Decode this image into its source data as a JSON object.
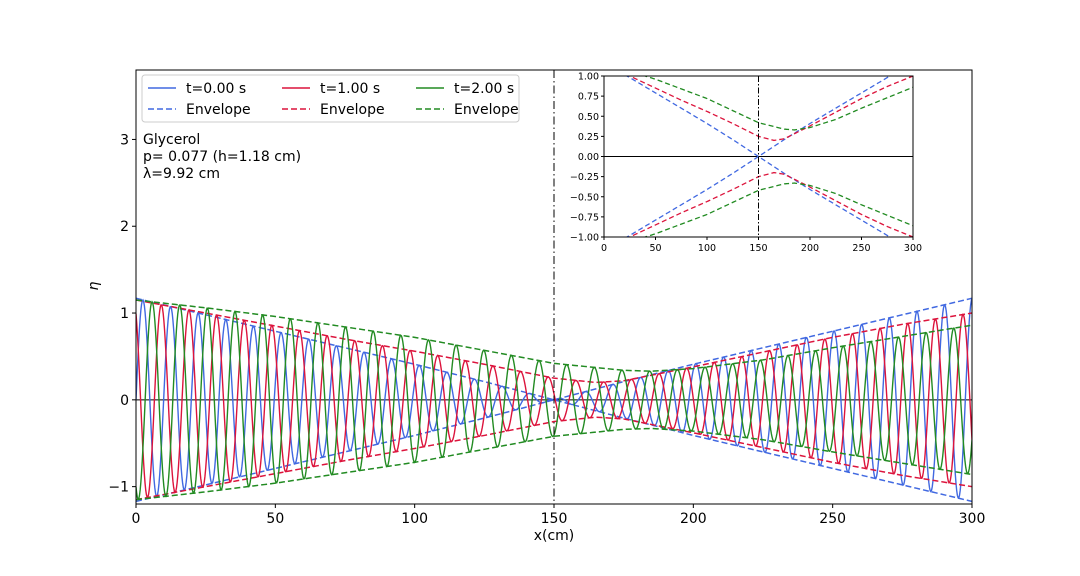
{
  "chart_data": {
    "type": "line",
    "xlabel": "x(cm)",
    "ylabel": "η",
    "xlim": [
      0,
      300
    ],
    "ylim": [
      -1.2,
      3.8
    ],
    "xticks": [
      "0",
      "50",
      "100",
      "150",
      "200",
      "250",
      "300"
    ],
    "yticks": [
      "−1",
      "0",
      "1",
      "2",
      "3"
    ],
    "focus_x": 150,
    "wavelength_cm": 9.92,
    "annotations": [
      "Glycerol",
      "p= 0.077 (h=1.18 cm)",
      "λ=9.92 cm"
    ],
    "legend_position": "top-left",
    "legend": [
      {
        "label": "t=0.00 s",
        "style": "solid",
        "color": "#4169e1"
      },
      {
        "label": "Envelope",
        "style": "dashed",
        "color": "#4169e1"
      },
      {
        "label": "t=1.00 s",
        "style": "solid",
        "color": "#dc143c"
      },
      {
        "label": "Envelope",
        "style": "dashed",
        "color": "#dc143c"
      },
      {
        "label": "t=2.00 s",
        "style": "solid",
        "color": "#228b22"
      },
      {
        "label": "Envelope",
        "style": "dashed",
        "color": "#228b22"
      }
    ],
    "series": [
      {
        "name": "t=0.00 s",
        "color": "#4169e1",
        "wave_phase": 0,
        "envelope_name": "Envelope",
        "envelope": {
          "x": [
            0,
            25,
            50,
            75,
            100,
            125,
            150,
            175,
            200,
            225,
            250,
            275,
            300
          ],
          "y": [
            1.17,
            0.98,
            0.79,
            0.6,
            0.41,
            0.21,
            0.0,
            0.21,
            0.41,
            0.6,
            0.79,
            0.98,
            1.17
          ]
        }
      },
      {
        "name": "t=1.00 s",
        "color": "#dc143c",
        "wave_phase": 2.1,
        "envelope_name": "Envelope",
        "envelope": {
          "x": [
            0,
            25,
            50,
            75,
            100,
            125,
            150,
            165,
            175,
            200,
            225,
            250,
            275,
            300
          ],
          "y": [
            1.15,
            1.0,
            0.85,
            0.7,
            0.56,
            0.41,
            0.25,
            0.2,
            0.22,
            0.38,
            0.55,
            0.72,
            0.87,
            1.0
          ]
        }
      },
      {
        "name": "t=2.00 s",
        "color": "#228b22",
        "wave_phase": 4.2,
        "envelope_name": "Envelope",
        "envelope": {
          "x": [
            0,
            25,
            50,
            75,
            100,
            125,
            150,
            175,
            185,
            200,
            225,
            250,
            275,
            300
          ],
          "y": [
            1.15,
            1.06,
            0.96,
            0.84,
            0.72,
            0.57,
            0.42,
            0.34,
            0.33,
            0.36,
            0.46,
            0.6,
            0.73,
            0.86
          ]
        }
      }
    ],
    "inset": {
      "xlim": [
        0,
        300
      ],
      "ylim": [
        -1.0,
        1.0
      ],
      "xticks": [
        "0",
        "50",
        "100",
        "150",
        "200",
        "250",
        "300"
      ],
      "yticks": [
        "−1.00",
        "−0.75",
        "−0.50",
        "−0.25",
        "0.00",
        "0.25",
        "0.50",
        "0.75",
        "1.00"
      ],
      "focus_x": 150
    }
  }
}
